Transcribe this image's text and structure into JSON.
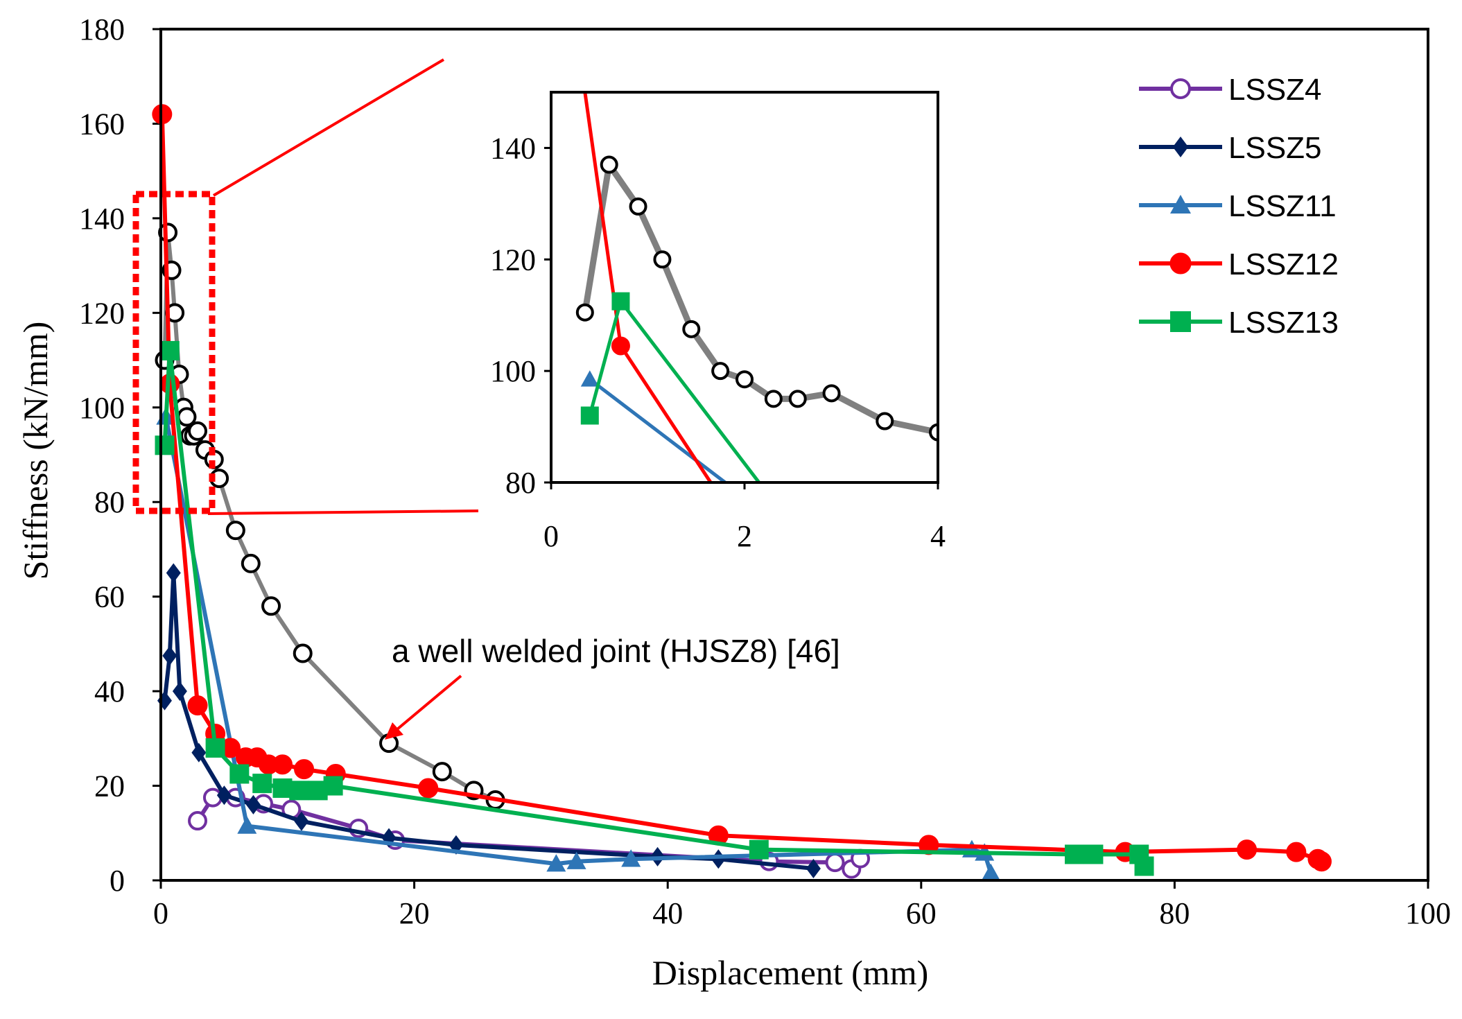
{
  "chart_data": [
    {
      "type": "line",
      "title": "",
      "xlabel": "Displacement (mm)",
      "ylabel": "Stiffness (kN/mm)",
      "xlim": [
        0,
        100
      ],
      "ylim": [
        0,
        180
      ],
      "xticks": [
        0,
        20,
        40,
        60,
        80,
        100
      ],
      "yticks": [
        0,
        20,
        40,
        60,
        80,
        100,
        120,
        140,
        160,
        180
      ],
      "legend_position": "top-right",
      "annotation": "a well welded joint (HJSZ8) [46]",
      "series": [
        {
          "name": "HJSZ8",
          "in_legend": false,
          "color": "#808080",
          "marker": "open-circle",
          "x": [
            0.3,
            0.55,
            0.85,
            1.1,
            1.45,
            1.8,
            2.05,
            2.3,
            2.6,
            2.9,
            3.5,
            4.2,
            4.6,
            5.9,
            7.1,
            8.7,
            11.2,
            18.0,
            22.2,
            24.7,
            26.4
          ],
          "y": [
            110,
            137,
            129,
            120,
            107,
            100,
            98,
            94,
            94,
            95,
            91,
            89,
            85,
            74,
            67,
            58,
            48,
            29,
            23,
            19,
            17
          ]
        },
        {
          "name": "LSSZ4",
          "in_legend": true,
          "color": "#7030A0",
          "marker": "open-circle",
          "x": [
            2.9,
            4.1,
            5.9,
            8.1,
            10.3,
            15.6,
            18.5,
            48.0,
            53.2,
            54.5,
            55.2
          ],
          "y": [
            12.6,
            17.5,
            17.5,
            16.2,
            15.0,
            11.0,
            8.5,
            4.0,
            3.8,
            2.4,
            4.6
          ]
        },
        {
          "name": "LSSZ5",
          "in_legend": true,
          "color": "#002060",
          "marker": "diamond",
          "x": [
            0.3,
            0.7,
            1.0,
            1.5,
            3.0,
            5.0,
            7.3,
            11.1,
            18.0,
            23.3,
            39.2,
            44.0,
            51.5
          ],
          "y": [
            38,
            47.5,
            65,
            40,
            27,
            18,
            16,
            12.5,
            9,
            7.5,
            5,
            4.5,
            2.5
          ]
        },
        {
          "name": "LSSZ11",
          "in_legend": true,
          "color": "#2E75B6",
          "marker": "triangle",
          "x": [
            0.4,
            6.8,
            31.2,
            32.8,
            37.1,
            64.0,
            65.0,
            65.5
          ],
          "y": [
            98,
            11.5,
            3.5,
            4.0,
            4.5,
            6.5,
            5.8,
            1.5
          ]
        },
        {
          "name": "LSSZ12",
          "in_legend": true,
          "color": "#FF0000",
          "marker": "filled-circle",
          "x": [
            0.1,
            0.7,
            2.9,
            4.3,
            5.5,
            6.7,
            7.6,
            8.5,
            9.6,
            11.3,
            13.8,
            21.1,
            44.0,
            60.6,
            76.1,
            85.7,
            89.6,
            91.3,
            91.6
          ],
          "y": [
            162,
            105,
            37,
            31,
            28,
            26,
            26,
            24.5,
            24.5,
            23.5,
            22.5,
            19.5,
            9.5,
            7.5,
            6,
            6.5,
            6,
            4.5,
            4
          ]
        },
        {
          "name": "LSSZ13",
          "in_legend": true,
          "color": "#00B050",
          "marker": "square",
          "x": [
            0.3,
            0.7,
            4.3,
            6.2,
            8.0,
            9.6,
            10.9,
            12.4,
            13.6,
            47.2,
            72.1,
            73.6,
            77.2,
            77.6
          ],
          "y": [
            92,
            112,
            28,
            22.5,
            20.5,
            19.5,
            19,
            19,
            20,
            6.5,
            5.5,
            5.5,
            5.5,
            3
          ]
        }
      ]
    },
    {
      "type": "line",
      "title": "",
      "xlabel": "",
      "ylabel": "",
      "xlim": [
        0,
        4
      ],
      "ylim": [
        80,
        150
      ],
      "xticks": [
        0,
        2,
        4
      ],
      "yticks": [
        80,
        100,
        120,
        140
      ],
      "legend_position": "none",
      "series": [
        {
          "name": "HJSZ8",
          "color": "#808080",
          "marker": "open-circle",
          "x": [
            0.35,
            0.6,
            0.9,
            1.15,
            1.45,
            1.75,
            2.0,
            2.3,
            2.55,
            2.9,
            3.45,
            4.0
          ],
          "y": [
            110.5,
            137,
            129.5,
            120,
            107.5,
            100,
            98.5,
            95,
            95,
            96,
            91,
            89
          ]
        },
        {
          "name": "LSSZ11",
          "color": "#2E75B6",
          "marker": "triangle",
          "x": [
            0.4,
            1.8
          ],
          "y": [
            98.5,
            80
          ]
        },
        {
          "name": "LSSZ12",
          "color": "#FF0000",
          "marker": "filled-circle",
          "x": [
            0.35,
            0.72,
            1.65
          ],
          "y": [
            150,
            104.5,
            80
          ]
        },
        {
          "name": "LSSZ13",
          "color": "#00B050",
          "marker": "square",
          "x": [
            0.4,
            0.72,
            2.15
          ],
          "y": [
            92,
            112.5,
            80
          ]
        }
      ]
    }
  ]
}
